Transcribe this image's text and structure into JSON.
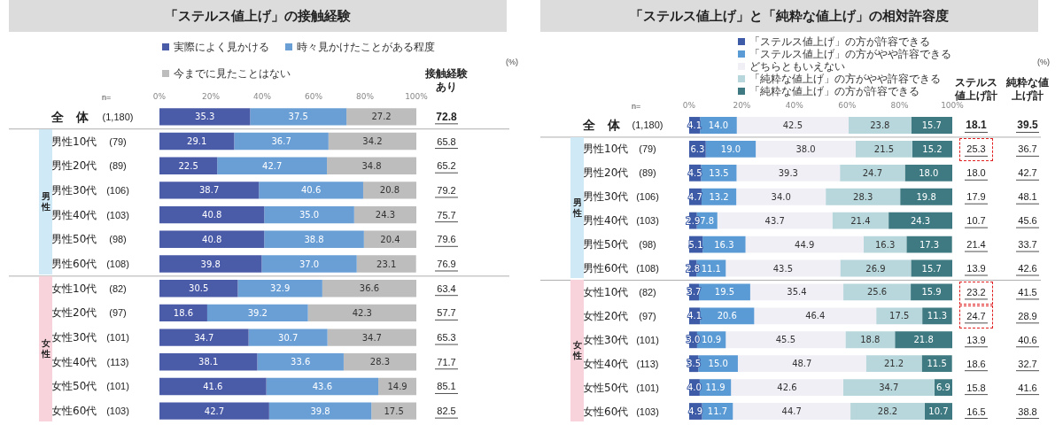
{
  "chart_data": [
    {
      "type": "bar",
      "orientation": "horizontal",
      "stacked": true,
      "title": "「ステルス値上げ」の接触経験",
      "categories": [
        "全　体",
        "男性10代",
        "男性20代",
        "男性30代",
        "男性40代",
        "男性50代",
        "男性60代",
        "女性10代",
        "女性20代",
        "女性30代",
        "女性40代",
        "女性50代",
        "女性60代"
      ],
      "series": [
        {
          "name": "実際によく見かける",
          "color": "#4a5ba8",
          "values": [
            35.3,
            29.1,
            22.5,
            38.7,
            40.8,
            40.8,
            39.8,
            30.5,
            18.6,
            34.7,
            38.1,
            41.6,
            42.7
          ],
          "value_labels": [
            "35.3",
            "29.1",
            "22.5",
            "38.7",
            "40.8",
            "40.8",
            "39.8",
            "30.5",
            "18.6",
            "34.7",
            "38.1",
            "41.6",
            "42.7"
          ]
        },
        {
          "name": "時々見かけたことがある程度",
          "color": "#6a9fd6",
          "values": [
            37.5,
            36.7,
            42.7,
            40.6,
            35.0,
            38.8,
            37.0,
            32.9,
            39.2,
            30.7,
            33.6,
            43.6,
            39.8
          ],
          "value_labels": [
            "37.5",
            "36.7",
            "42.7",
            "40.6",
            "35.0",
            "38.8",
            "37.0",
            "32.9",
            "39.2",
            "30.7",
            "33.6",
            "43.6",
            "39.8"
          ]
        },
        {
          "name": "今までに見たことはない",
          "color": "#bdbdbd",
          "values": [
            27.2,
            34.2,
            34.8,
            20.8,
            24.3,
            20.4,
            23.1,
            36.6,
            42.3,
            34.7,
            28.3,
            14.9,
            17.5
          ],
          "value_labels": [
            "27.2",
            "34.2",
            "34.8",
            "20.8",
            "24.3",
            "20.4",
            "23.1",
            "36.6",
            "42.3",
            "34.7",
            "28.3",
            "14.9",
            "17.5"
          ]
        }
      ],
      "xlim": [
        0,
        100
      ],
      "xticks": [
        {
          "value": 0,
          "label": "0%"
        },
        {
          "value": 20,
          "label": "20%"
        },
        {
          "value": 40,
          "label": "40%"
        },
        {
          "value": 60,
          "label": "60%"
        },
        {
          "value": 80,
          "label": "80%"
        },
        {
          "value": 100,
          "label": "100%"
        }
      ],
      "legend": "top",
      "grid": false,
      "annotations": [
        "n=",
        "(1,180)",
        "(79)",
        "(89)",
        "(106)",
        "(103)",
        "(98)",
        "(108)",
        "(82)",
        "(97)",
        "(101)",
        "(113)",
        "(101)",
        "(103)",
        "接触経験あり",
        "72.8",
        "65.8",
        "65.2",
        "79.2",
        "75.7",
        "79.6",
        "76.9",
        "63.4",
        "57.7",
        "65.3",
        "71.7",
        "85.1",
        "82.5",
        "(%)",
        "男性",
        "女性"
      ]
    },
    {
      "type": "bar",
      "orientation": "horizontal",
      "stacked": true,
      "title": "「ステルス値上げ」と「純粋な値上げ」の相対許容度",
      "categories": [
        "全　体",
        "男性10代",
        "男性20代",
        "男性30代",
        "男性40代",
        "男性50代",
        "男性60代",
        "女性10代",
        "女性20代",
        "女性30代",
        "女性40代",
        "女性50代",
        "女性60代"
      ],
      "series": [
        {
          "name": "「ステルス値上げ」の方が許容できる",
          "color": "#3d5ba6",
          "values": [
            4.1,
            6.3,
            4.5,
            4.7,
            2.9,
            5.1,
            2.8,
            3.7,
            4.1,
            3.0,
            3.5,
            4.0,
            4.9
          ],
          "value_labels": [
            "4.1",
            "6.3",
            "4.5",
            "4.7",
            "2.9",
            "5.1",
            "2.8",
            "3.7",
            "4.1",
            "3.0",
            "3.5",
            "4.0",
            "4.9"
          ]
        },
        {
          "name": "「ステルス値上げ」の方がやや許容できる",
          "color": "#5b9bd5",
          "values": [
            14.0,
            19.0,
            13.5,
            13.2,
            7.8,
            16.3,
            11.1,
            19.5,
            20.6,
            10.9,
            15.0,
            11.9,
            11.7
          ],
          "value_labels": [
            "14.0",
            "19.0",
            "13.5",
            "13.2",
            "7.8",
            "16.3",
            "11.1",
            "19.5",
            "20.6",
            "10.9",
            "15.0",
            "11.9",
            "11.7"
          ]
        },
        {
          "name": "どちらともいえない",
          "color": "#f1eff6",
          "values": [
            42.5,
            38.0,
            39.3,
            34.0,
            43.7,
            44.9,
            43.5,
            35.4,
            46.4,
            45.5,
            48.7,
            42.6,
            44.7
          ],
          "value_labels": [
            "42.5",
            "38.0",
            "39.3",
            "34.0",
            "43.7",
            "44.9",
            "43.5",
            "35.4",
            "46.4",
            "45.5",
            "48.7",
            "42.6",
            "44.7"
          ]
        },
        {
          "name": "「純粋な値上げ」の方がやや許容できる",
          "color": "#b7d7dc",
          "values": [
            23.8,
            21.5,
            24.7,
            28.3,
            21.4,
            16.3,
            26.9,
            25.6,
            17.5,
            18.8,
            21.2,
            34.7,
            28.2
          ],
          "value_labels": [
            "23.8",
            "21.5",
            "24.7",
            "28.3",
            "21.4",
            "16.3",
            "26.9",
            "25.6",
            "17.5",
            "18.8",
            "21.2",
            "34.7",
            "28.2"
          ]
        },
        {
          "name": "「純粋な値上げ」の方が許容できる",
          "color": "#3f7a82",
          "values": [
            15.7,
            15.2,
            18.0,
            19.8,
            24.3,
            17.3,
            15.7,
            15.9,
            11.3,
            21.8,
            11.5,
            6.9,
            10.7
          ],
          "value_labels": [
            "15.7",
            "15.2",
            "18.0",
            "19.8",
            "24.3",
            "17.3",
            "15.7",
            "15.9",
            "11.3",
            "21.8",
            "11.5",
            "6.9",
            "10.7"
          ]
        }
      ],
      "xlim": [
        0,
        100
      ],
      "xticks": [
        {
          "value": 0,
          "label": "0%"
        },
        {
          "value": 20,
          "label": "20%"
        },
        {
          "value": 40,
          "label": "40%"
        },
        {
          "value": 60,
          "label": "60%"
        },
        {
          "value": 80,
          "label": "80%"
        },
        {
          "value": 100,
          "label": "100%"
        }
      ],
      "legend": "top",
      "grid": false,
      "annotations": [
        "n=",
        "(1,180)",
        "(79)",
        "(89)",
        "(106)",
        "(103)",
        "(98)",
        "(108)",
        "(82)",
        "(97)",
        "(101)",
        "(113)",
        "(101)",
        "(103)",
        "ステルス値上げ計",
        "18.1",
        "25.3",
        "18.0",
        "17.9",
        "10.7",
        "21.4",
        "13.9",
        "23.2",
        "24.7",
        "13.9",
        "18.6",
        "15.8",
        "16.5",
        "純粋な値上げ計",
        "39.5",
        "36.7",
        "42.7",
        "48.1",
        "45.6",
        "33.7",
        "42.6",
        "41.5",
        "28.9",
        "40.6",
        "32.7",
        "41.6",
        "38.8",
        "(%)",
        "男性",
        "女性"
      ]
    }
  ]
}
